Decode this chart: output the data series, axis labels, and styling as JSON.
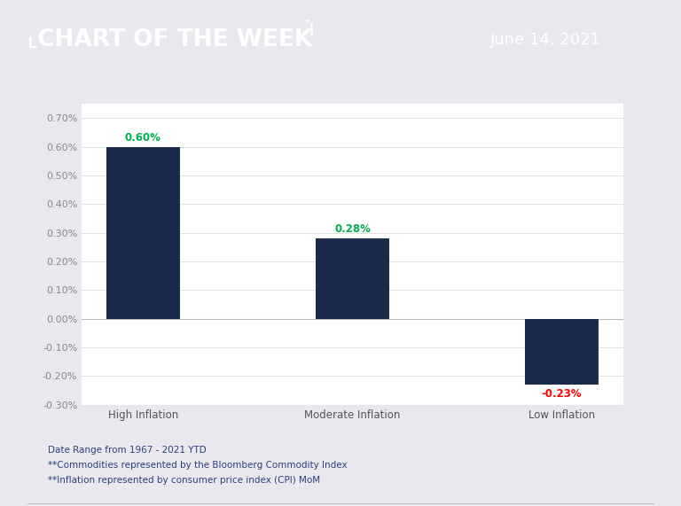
{
  "categories": [
    "High Inflation",
    "Moderate Inflation",
    "Low Inflation"
  ],
  "values": [
    0.006,
    0.0028,
    -0.0023
  ],
  "bar_color": "#1b2a4a",
  "label_colors": [
    "#00b050",
    "#00b050",
    "#ff0000"
  ],
  "label_texts": [
    "0.60%",
    "0.28%",
    "-0.23%"
  ],
  "ylim": [
    -0.003,
    0.0075
  ],
  "ytick_vals": [
    -0.003,
    -0.002,
    -0.001,
    0.0,
    0.001,
    0.002,
    0.003,
    0.004,
    0.005,
    0.006,
    0.007
  ],
  "ytick_labels": [
    "-0.30%",
    "-0.20%",
    "-0.10%",
    "0.00%",
    "0.10%",
    "0.20%",
    "0.30%",
    "0.40%",
    "0.50%",
    "0.60%",
    "0.70%"
  ],
  "header_bg_color": "#2d3a8c",
  "header_title": "CHART OF THE WEEK",
  "header_date": "June 14, 2021",
  "outer_bg_color": "#e8e8ee",
  "chart_area_bg": "#f5f5f8",
  "plot_bg_color": "#ffffff",
  "sidebar_color": "#1b2a4a",
  "footnote_line1": "Date Range from 1967 - 2021 YTD",
  "footnote_line2": "**Commodities represented by the Bloomberg Commodity Index",
  "footnote_line3": "**Inflation represented by consumer price index (CPI) MoM",
  "footnote_color": "#2d4080",
  "axis_tick_color": "#888888",
  "bar_width": 0.35
}
